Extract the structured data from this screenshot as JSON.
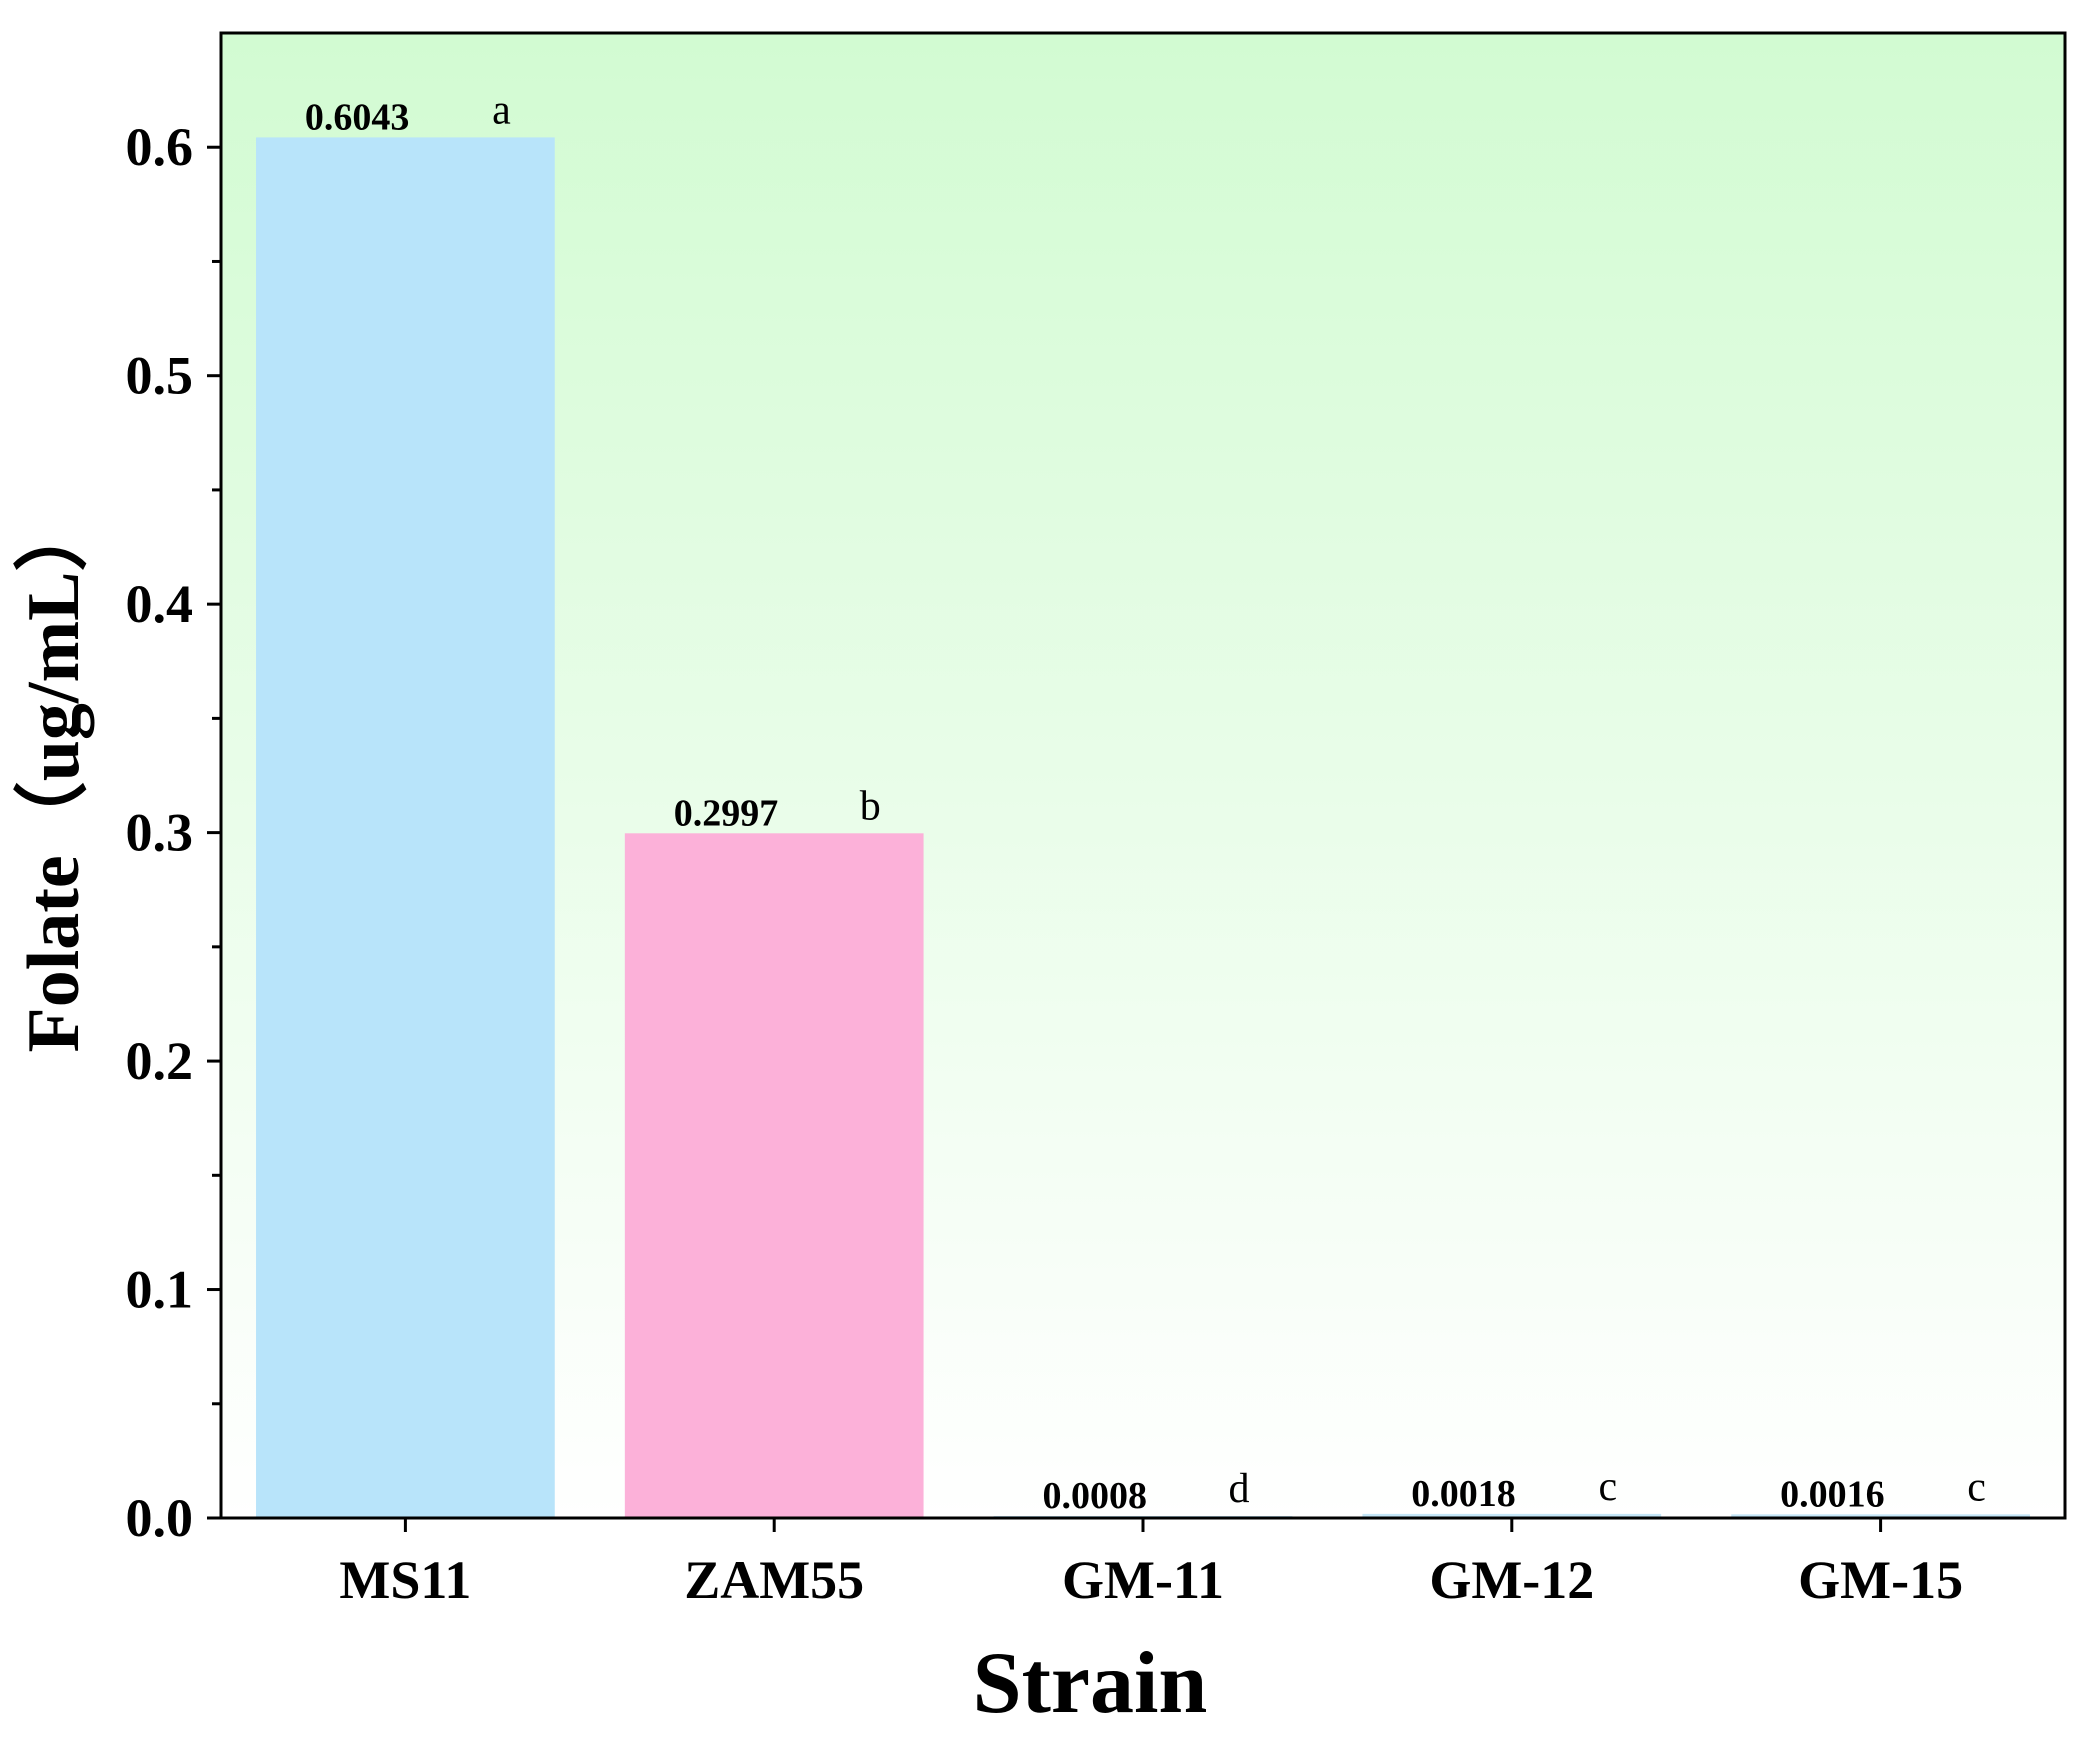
{
  "chart_data": {
    "type": "bar",
    "categories": [
      "MS11",
      "ZAM55",
      "GM-11",
      "GM-12",
      "GM-15"
    ],
    "values": [
      0.6043,
      0.2997,
      0.0008,
      0.0018,
      0.0016
    ],
    "value_labels": [
      "0.6043",
      "0.2997",
      "0.0008",
      "0.0018",
      "0.0016"
    ],
    "significance_letters": [
      "a",
      "b",
      "d",
      "c",
      "c"
    ],
    "bar_colors": [
      "#b8e4fa",
      "#fcb1d9",
      "#c4e6f7",
      "#c4e6f7",
      "#c4e6f7"
    ],
    "xlabel": "Strain",
    "ylabel": "Folate（ug/mL）",
    "ylim": [
      0,
      0.65
    ],
    "yticks": [
      0.0,
      0.1,
      0.2,
      0.3,
      0.4,
      0.5,
      0.6
    ],
    "ytick_labels": [
      "0.0",
      "0.1",
      "0.2",
      "0.3",
      "0.4",
      "0.5",
      "0.6"
    ],
    "grid": false,
    "background_gradient": [
      "#d2fbd2",
      "#ffffff"
    ]
  }
}
